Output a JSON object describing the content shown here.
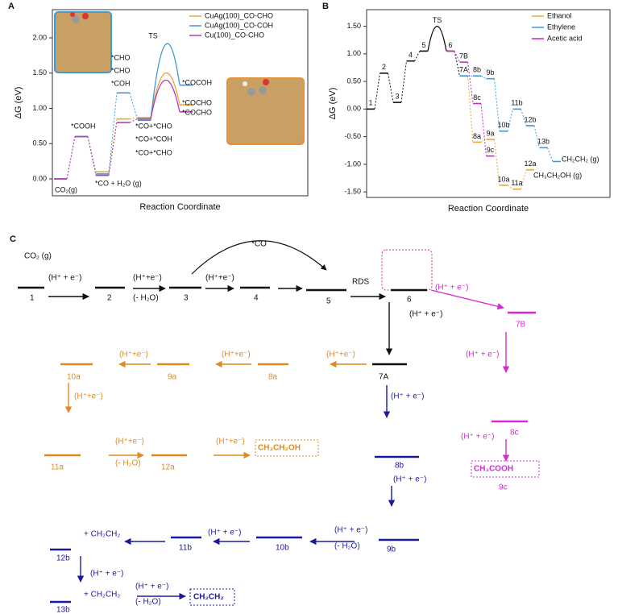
{
  "chart_data": [
    {
      "panel": "A",
      "type": "line",
      "y_label": "ΔG (eV)",
      "x_label": "Reaction Coordinate",
      "ylim": [
        -0.24,
        2.4
      ],
      "yticks": [
        {
          "value": 0,
          "label": "0.00"
        },
        {
          "value": 0.5,
          "label": "0.50"
        },
        {
          "value": 1,
          "label": "1.00"
        },
        {
          "value": 1.5,
          "label": "1.50"
        },
        {
          "value": 2,
          "label": "2.00"
        }
      ],
      "series": [
        {
          "name": "CuAg(100)_CO-CHO",
          "color": "#e8a838",
          "values": [
            0,
            0.6,
            0.1,
            0.85,
            0.87,
            1.5,
            1.05
          ],
          "labels": [
            null,
            null,
            null,
            "*CHO",
            "*CO+*CHO",
            null,
            "*COCHO"
          ]
        },
        {
          "name": "CuAg(100)_CO-COH",
          "color": "#3c9bd6",
          "values": [
            0,
            0.6,
            0.07,
            1.22,
            0.83,
            1.9,
            1.33
          ],
          "labels": [
            null,
            null,
            null,
            "*COH",
            "*CO+*COH",
            null,
            "*COCOH"
          ]
        },
        {
          "name": "Cu(100)_CO-CHO",
          "color": "#b83ab8",
          "values": [
            0,
            0.6,
            0.05,
            0.8,
            0.85,
            1.4,
            0.95
          ],
          "labels": [
            null,
            null,
            null,
            "*CHO",
            "*CO+*CHO",
            null,
            "*COCHO"
          ]
        }
      ],
      "annotations": [
        "CO₂(g)",
        "*COOH",
        "*CO + H₂O (g)",
        "TS"
      ]
    },
    {
      "panel": "B",
      "type": "line",
      "y_label": "ΔG (eV)",
      "x_label": "Reaction Coordinate",
      "ylim": [
        -1.6,
        1.8
      ],
      "yticks": [
        {
          "value": 1.5,
          "label": "1.50"
        },
        {
          "value": 1,
          "label": "1.00"
        },
        {
          "value": 0.5,
          "label": "0.50"
        },
        {
          "value": 0,
          "label": "0.00"
        },
        {
          "value": -0.5,
          "label": "-0.50"
        },
        {
          "value": -1,
          "label": "-1.00"
        },
        {
          "value": -1.5,
          "label": "-1.50"
        }
      ],
      "common": {
        "color": "#111111",
        "values": [
          0,
          0.65,
          0.12,
          0.87,
          1.05,
          1.5,
          1.05,
          0.6
        ],
        "labels": [
          "1",
          "2",
          "3",
          "4",
          "5",
          "TS",
          "6",
          "7A"
        ]
      },
      "series": [
        {
          "name": "Ethanol",
          "color": "#e8a838",
          "values": [
            null,
            null,
            null,
            null,
            null,
            null,
            null,
            0.6,
            -0.6,
            -0.55,
            -1.38,
            -1.45,
            -1.1
          ],
          "labels": [
            null,
            null,
            null,
            null,
            null,
            null,
            null,
            null,
            "8a",
            "9a",
            "10a",
            "11a",
            "12a"
          ],
          "product": "CH₃CH₂OH (g)"
        },
        {
          "name": "Ethylene",
          "color": "#3c9bd6",
          "values": [
            null,
            null,
            null,
            null,
            null,
            null,
            null,
            0.6,
            0.6,
            0.55,
            -0.4,
            0.0,
            -0.3,
            -0.7,
            -0.95
          ],
          "labels": [
            null,
            null,
            null,
            null,
            null,
            null,
            null,
            null,
            "8b",
            "9b",
            "10b",
            "11b",
            "12b",
            "13b",
            null
          ],
          "product": "CH₂CH₂ (g)"
        },
        {
          "name": "Acetic acid",
          "color": "#c12bc1",
          "values": [
            null,
            null,
            null,
            null,
            null,
            null,
            1.05,
            0.85,
            0.1,
            -0.85
          ],
          "labels": [
            null,
            null,
            null,
            null,
            null,
            null,
            null,
            "7B",
            "8c",
            "9c"
          ]
        }
      ]
    }
  ],
  "scheme": {
    "texts": [
      "C",
      "CO₂ (g)",
      "(H⁺ + e⁻)",
      "1",
      "2",
      "(H⁺+e⁻)",
      "(- H₂O)",
      "3",
      "(H⁺+e⁻)",
      "4",
      "*CO",
      "5",
      "RDS",
      "6",
      "(H⁺ + e⁻)",
      "(H⁺ + e⁻)",
      "7B",
      "7A",
      "(H⁺+e⁻)",
      "8a",
      "(H⁺+e⁻)",
      "9a",
      "(H⁺+e⁻)",
      "10a",
      "(H⁺+e⁻)",
      "11a",
      "(H⁺+e⁻)",
      "(- H₂O)",
      "12a",
      "(H⁺+e⁻)",
      "CH₃CH₂OH",
      "(H⁺ + e⁻)",
      "(H⁺ + e⁻)",
      "8c",
      "(H⁺ + e⁻)",
      "CH₃COOH",
      "9c",
      "8b",
      "(H⁺ + e⁻)",
      "9b",
      "(H⁺ + e⁻)",
      "(- H₂O)",
      "10b",
      "(H⁺ + e⁻)",
      "11b",
      "12b",
      "+ CH₂CH₂",
      "(H⁺ + e⁻)",
      "13b",
      "+ CH₂CH₂",
      "(H⁺ + e⁻)",
      "(- H₂O)",
      "CH₂CH₂"
    ]
  }
}
